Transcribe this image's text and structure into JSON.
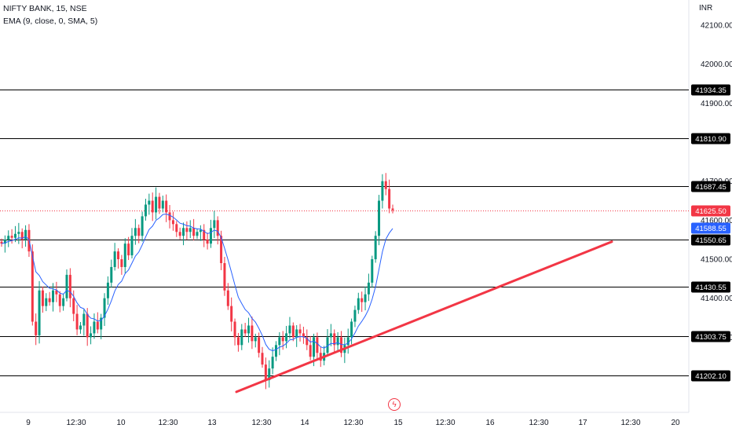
{
  "legend": {
    "symbol": "NIFTY BANK, 15, NSE",
    "indicator": "EMA (9, close, 0, SMA, 5)"
  },
  "price_axis": {
    "currency": "INR",
    "ticks": [
      "42100.00",
      "42000.00",
      "41900.00",
      "41700.00",
      "41600.00",
      "41500.00",
      "41400.00",
      "41300.00"
    ]
  },
  "time_axis": {
    "ticks": [
      "9",
      "12:30",
      "10",
      "12:30",
      "13",
      "12:30",
      "14",
      "12:30",
      "15",
      "12:30",
      "16",
      "12:30",
      "17",
      "12:30",
      "20"
    ]
  },
  "colors": {
    "up": "#089981",
    "down": "#f23645",
    "ema": "#2962ff",
    "trendline": "#f23645",
    "hline": "#000000",
    "last_price": "#f23645",
    "ema_label": "#2962ff"
  },
  "markers": {
    "event_icon": "flash-icon"
  },
  "chart_data": {
    "type": "candlestick",
    "title": "NIFTY BANK, 15, NSE",
    "indicator": "EMA (9, close, 0, SMA, 5)",
    "ylim": [
      41155,
      42130
    ],
    "x_categories": [
      "9",
      "12:30",
      "10",
      "12:30",
      "13",
      "12:30",
      "14",
      "12:30",
      "15",
      "12:30",
      "16",
      "12:30",
      "17",
      "12:30",
      "20"
    ],
    "horizontal_lines": [
      {
        "value": 41934.35,
        "label": "41934.35"
      },
      {
        "value": 41810.9,
        "label": "41810.90"
      },
      {
        "value": 41687.45,
        "label": "41687.45"
      },
      {
        "value": 41550.65,
        "label": "41550.65"
      },
      {
        "value": 41430.55,
        "label": "41430.55"
      },
      {
        "value": 41303.75,
        "label": "41303.75"
      },
      {
        "value": 41202.1,
        "label": "41202.10"
      }
    ],
    "last_price": {
      "value": 41625.5,
      "label": "41625.50"
    },
    "ema_last": {
      "value": 41588.55,
      "label": "41588.55"
    },
    "trendline": {
      "from": {
        "x": "13",
        "y": 41160
      },
      "to": {
        "x": "17 12:30",
        "y": 41545
      }
    },
    "closes": [
      41540,
      41550,
      41560,
      41555,
      41565,
      41570,
      41550,
      41575,
      41520,
      41340,
      41305,
      41420,
      41380,
      41400,
      41390,
      41420,
      41410,
      41380,
      41400,
      41460,
      41400,
      41360,
      41320,
      41330,
      41360,
      41300,
      41310,
      41340,
      41320,
      41350,
      41400,
      41440,
      41480,
      41520,
      41500,
      41480,
      41540,
      41510,
      41560,
      41580,
      41560,
      41610,
      41640,
      41650,
      41620,
      41660,
      41630,
      41650,
      41620,
      41600,
      41590,
      41570,
      41560,
      41580,
      41570,
      41580,
      41560,
      41570,
      41575,
      41550,
      41540,
      41580,
      41600,
      41560,
      41490,
      41420,
      41380,
      41340,
      41300,
      41280,
      41320,
      41310,
      41330,
      41290,
      41300,
      41260,
      41230,
      41190,
      41220,
      41250,
      41280,
      41300,
      41290,
      41310,
      41330,
      41300,
      41320,
      41310,
      41300,
      41280,
      41250,
      41300,
      41260,
      41240,
      41260,
      41300,
      41310,
      41280,
      41300,
      41260,
      41280,
      41300,
      41340,
      41370,
      41400,
      41390,
      41410,
      41440,
      41500,
      41560,
      41650,
      41700,
      41680,
      41630,
      41625.5
    ]
  }
}
